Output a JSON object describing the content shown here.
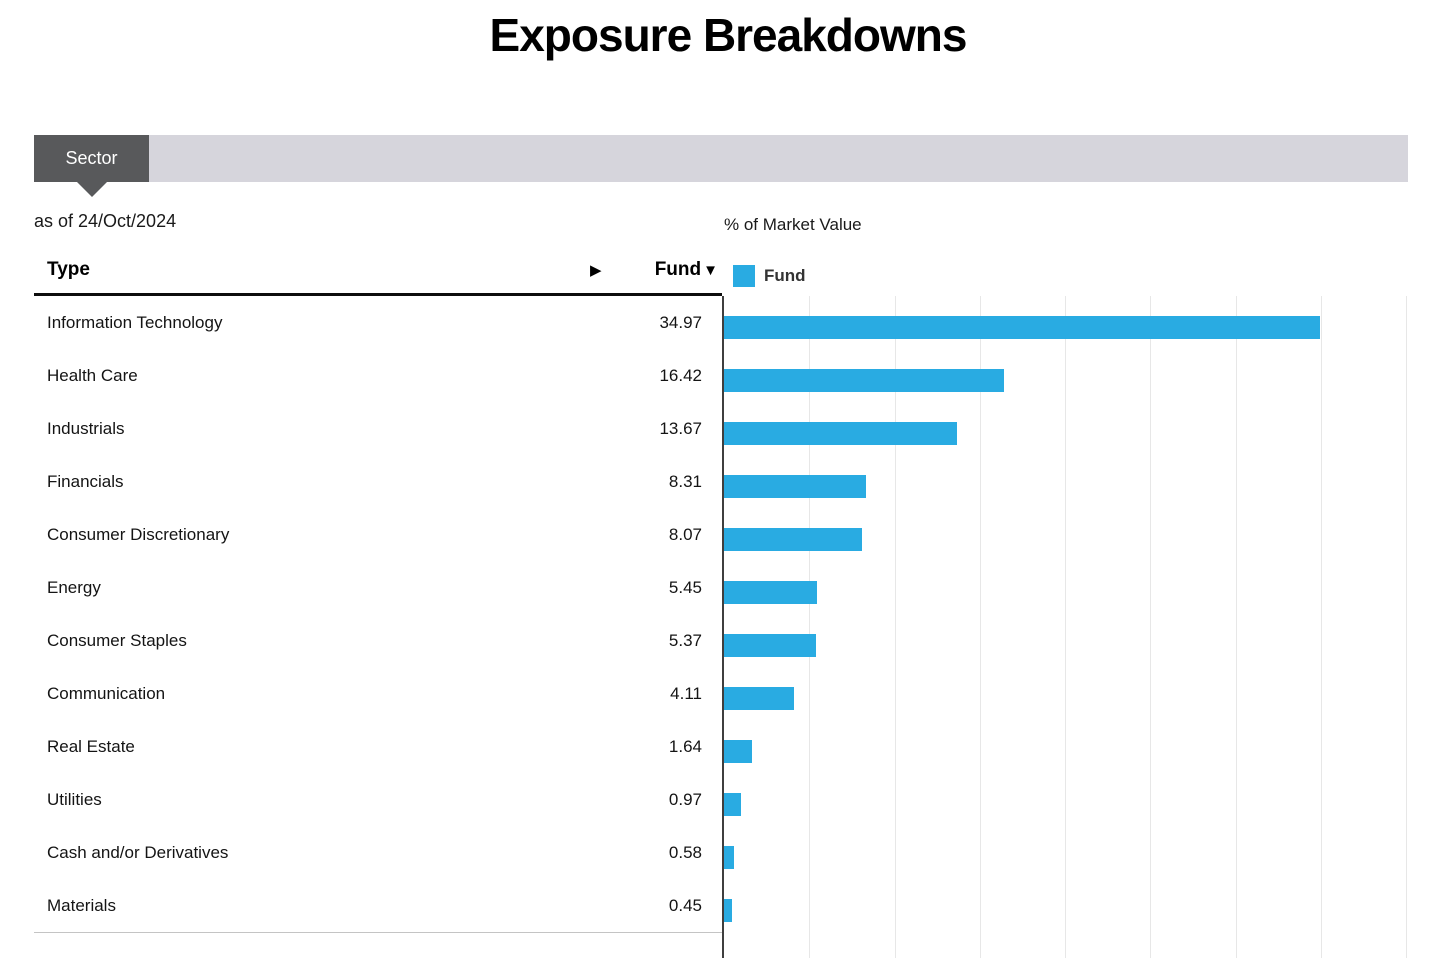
{
  "page": {
    "title": "Exposure Breakdowns"
  },
  "tabs": {
    "items": [
      {
        "label": "Sector",
        "active": true
      }
    ]
  },
  "as_of": "as of 24/Oct/2024",
  "table": {
    "headers": {
      "type": "Type",
      "fund": "Fund"
    },
    "sort_icon": "▼",
    "expander_icon": "▶"
  },
  "chart": {
    "axis_title": "% of Market Value",
    "legend": {
      "label": "Fund",
      "swatch_color": "#29abe2"
    }
  },
  "colors": {
    "bar": "#29abe2",
    "active_tab": "#58595b",
    "tab_strip": "#d6d5dc",
    "gridline": "#e7e7e7",
    "axis_line": "#3f3f3f"
  },
  "chart_data": {
    "type": "bar",
    "orientation": "horizontal",
    "title": "Exposure Breakdowns",
    "xlabel": "% of Market Value",
    "ylabel": "Type",
    "as_of": "24/Oct/2024",
    "categories": [
      "Information Technology",
      "Health Care",
      "Industrials",
      "Financials",
      "Consumer Discretionary",
      "Energy",
      "Consumer Staples",
      "Communication",
      "Real Estate",
      "Utilities",
      "Cash and/or Derivatives",
      "Materials"
    ],
    "series": [
      {
        "name": "Fund",
        "color": "#29abe2",
        "values": [
          34.97,
          16.42,
          13.67,
          8.31,
          8.07,
          5.45,
          5.37,
          4.11,
          1.64,
          0.97,
          0.58,
          0.45
        ]
      }
    ],
    "xlim": [
      0,
      40.1
    ],
    "gridline_step": 5,
    "grid": true,
    "legend_position": "top-left",
    "value_decimals": 2
  }
}
